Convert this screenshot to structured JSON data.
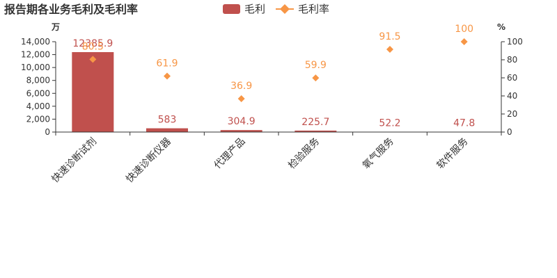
{
  "chart_data": {
    "type": "bar",
    "title": "报告期各业务毛利及毛利率",
    "categories": [
      "快速诊断试剂",
      "快速诊断仪器",
      "代理产品",
      "检验服务",
      "氧气服务",
      "软件服务"
    ],
    "series": [
      {
        "name": "毛利",
        "type": "bar",
        "axis": "left",
        "color": "#c0504d",
        "values": [
          12385.9,
          583,
          304.9,
          225.7,
          52.2,
          47.8
        ],
        "labels": [
          "12385.9",
          "583",
          "304.9",
          "225.7",
          "52.2",
          "47.8"
        ]
      },
      {
        "name": "毛利率",
        "type": "scatter",
        "marker": "diamond",
        "axis": "right",
        "color": "#f79646",
        "values": [
          80.5,
          61.9,
          36.9,
          59.9,
          91.5,
          100
        ],
        "labels": [
          "80.5",
          "61.9",
          "36.9",
          "59.9",
          "91.5",
          "100"
        ]
      }
    ],
    "left_axis": {
      "unit": "万",
      "ylim": [
        0,
        14000
      ],
      "ticks": [
        0,
        2000,
        4000,
        6000,
        8000,
        10000,
        12000,
        14000
      ],
      "tick_labels": [
        "0",
        "2,000",
        "4,000",
        "6,000",
        "8,000",
        "10,000",
        "12,000",
        "14,000"
      ]
    },
    "right_axis": {
      "unit": "%",
      "ylim": [
        0,
        100
      ],
      "ticks": [
        0,
        20,
        40,
        60,
        80,
        100
      ],
      "tick_labels": [
        "0",
        "20",
        "40",
        "60",
        "80",
        "100"
      ]
    },
    "legend": {
      "position": "top-center"
    },
    "grid": false
  }
}
